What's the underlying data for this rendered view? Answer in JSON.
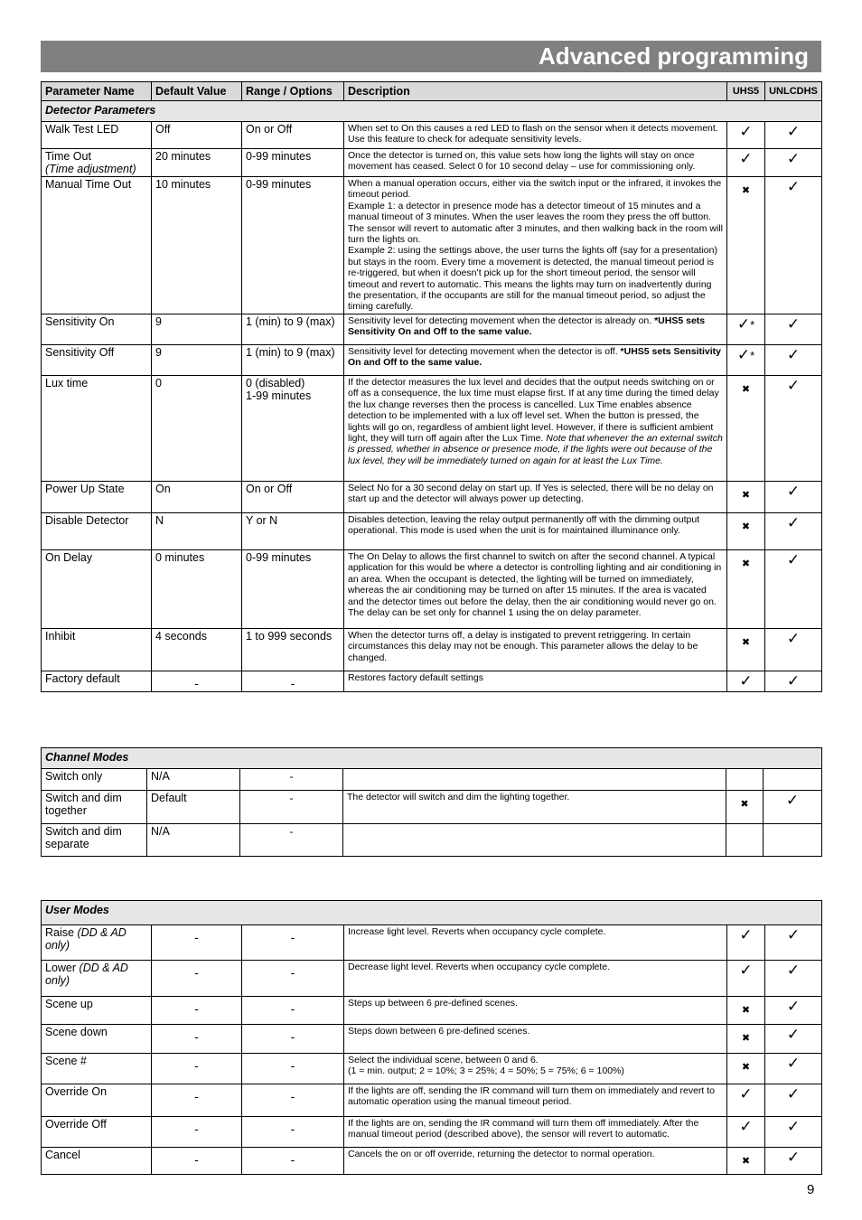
{
  "page_title": "Advanced programming",
  "page_number": "9",
  "columns": [
    "Parameter Name",
    "Default Value",
    "Range / Options",
    "Description",
    "UHS5",
    "UNLCDHS"
  ],
  "detector": {
    "section": "Detector Parameters",
    "rows": [
      {
        "name": "Walk Test LED",
        "default": "Off",
        "range": "On or Off",
        "desc": "When set to On this causes a red LED to flash on the sensor when it detects movement. Use this feature to check for adequate sensitivity levels.",
        "uhs5": "check",
        "unlcdhs": "check"
      },
      {
        "name": "Time Out",
        "name_italic": "(Time adjustment)",
        "default": "20 minutes",
        "range": "0-99 minutes",
        "desc": "Once the detector is turned on, this value sets how long the lights will stay on once movement has ceased. Select 0 for 10 second delay – use for commissioning only.",
        "uhs5": "check",
        "unlcdhs": "check"
      },
      {
        "name": "Manual Time Out",
        "default": "10 minutes",
        "range": "0-99 minutes",
        "desc": "When a manual operation occurs, either via the switch input or the infrared, it invokes the timeout period.\nExample 1: a detector in presence mode has a detector timeout of 15 minutes and a manual timeout of 3 minutes. When the user leaves the room they press the off button. The sensor will revert to automatic after 3 minutes, and then walking back in the room will turn the lights on.\nExample 2: using the settings above, the user turns the lights off (say for a presentation) but stays in the room. Every time a movement is detected, the manual timeout period is re-triggered, but when it doesn’t pick up for the short timeout period, the sensor will timeout and revert to automatic. This means the lights may turn on inadvertently during the presentation, if the occupants are still for the manual timeout period, so adjust the timing carefully.",
        "uhs5": "cross",
        "unlcdhs": "check"
      },
      {
        "name": "Sensitivity On",
        "default": "9",
        "range": "1 (min) to 9 (max)",
        "desc": "Sensitivity level for detecting movement when the detector is already on.  ",
        "desc_bold": "*UHS5 sets Sensitivity On and Off to the same value.",
        "uhs5": "check*",
        "unlcdhs": "check"
      },
      {
        "name": "Sensitivity Off",
        "default": "9",
        "range": "1 (min) to 9 (max)",
        "desc": "Sensitivity level for detecting movement when the detector is off.  ",
        "desc_bold": "*UHS5 sets Sensitivity On and Off to the same value.",
        "uhs5": "check*",
        "unlcdhs": "check"
      },
      {
        "name": "Lux time",
        "default": "0",
        "range": "0 (disabled)\n1-99 minutes",
        "desc": "If the detector measures the lux level and decides that the output needs switching on or off as a consequence, the lux time must elapse first. If at any time during the timed delay the lux change reverses then the process is cancelled. Lux Time enables absence detection to be implemented with a lux off level set. When the button is pressed, the lights will go on, regardless of ambient light level. However, if there is sufficient ambient light, they will turn off again after the Lux Time. ",
        "desc_italic": "Note that whenever the an external switch is pressed, whether in absence or presence mode, if the lights were out because of the lux level, they will be immediately turned on again for at least the Lux Time.",
        "uhs5": "cross",
        "unlcdhs": "check"
      },
      {
        "name": "Power Up State",
        "default": "On",
        "range": "On or Off",
        "desc": "Select No for a 30 second delay on start up. If Yes is selected,   there will be no delay on start up and the detector will always power up detecting.",
        "uhs5": "cross",
        "unlcdhs": "check"
      },
      {
        "name": "Disable Detector",
        "default": "N",
        "range": "Y or N",
        "desc": "Disables detection, leaving the relay output permanently off with the dimming output operational. This mode is used when the unit is for maintained illuminance only.",
        "uhs5": "cross",
        "unlcdhs": "check"
      },
      {
        "name": "On Delay",
        "default": "0 minutes",
        "range": "0-99 minutes",
        "desc": "The On Delay to allows the first channel to switch on after the second channel. A typical application for this would be where a detector is controlling lighting and air conditioning in an area. When the occupant is detected, the lighting will be turned on immediately, whereas the air conditioning may be turned on after 15 minutes. If the area is vacated and the detector times out before the delay, then the air conditioning would never go on. The delay can be set only for channel 1 using the on delay parameter.",
        "uhs5": "cross",
        "unlcdhs": "check"
      },
      {
        "name": "Inhibit",
        "default": "4 seconds",
        "range": "1 to 999 seconds",
        "desc": "When the detector turns off, a delay is instigated to prevent retriggering. In certain circumstances this delay may not be enough. This parameter allows the delay to be changed.",
        "uhs5": "cross",
        "unlcdhs": "check"
      },
      {
        "name": "Factory default",
        "default": "-",
        "range": "-",
        "desc": "Restores factory default settings",
        "uhs5": "check",
        "unlcdhs": "check"
      }
    ]
  },
  "channel": {
    "section": "Channel Modes",
    "rows": [
      {
        "name": "Switch only",
        "default": "N/A",
        "range": "-",
        "desc": "",
        "uhs5": "",
        "unlcdhs": ""
      },
      {
        "name": "Switch and dim together",
        "default": "Default",
        "range": "-",
        "desc": "The detector will switch and dim the lighting together.",
        "uhs5": "cross",
        "unlcdhs": "check"
      },
      {
        "name": "Switch and dim separate",
        "default": "N/A",
        "range": "-",
        "desc": "",
        "uhs5": "",
        "unlcdhs": ""
      }
    ]
  },
  "user": {
    "section": "User Modes",
    "rows": [
      {
        "name": "Raise ",
        "name_italic": "(DD & AD only)",
        "default": "-",
        "range": "-",
        "desc": "Increase light level. Reverts when occupancy cycle complete.",
        "uhs5": "check",
        "unlcdhs": "check"
      },
      {
        "name": "Lower ",
        "name_italic": "(DD & AD only)",
        "default": "-",
        "range": "-",
        "desc": "Decrease light level. Reverts when occupancy cycle complete.",
        "uhs5": "check",
        "unlcdhs": "check"
      },
      {
        "name": "Scene up",
        "default": "-",
        "range": "-",
        "desc": "Steps up between 6 pre-defined scenes.",
        "uhs5": "cross",
        "unlcdhs": "check"
      },
      {
        "name": "Scene down",
        "default": "-",
        "range": "-",
        "desc": "Steps down between 6 pre-defined scenes.",
        "uhs5": "cross",
        "unlcdhs": "check"
      },
      {
        "name": "Scene #",
        "default": "-",
        "range": "-",
        "desc": "Select the individual scene, between 0 and 6.\n(1 = min. output; 2 = 10%;  3 = 25%; 4 = 50%; 5 = 75%; 6 = 100%)",
        "uhs5": "cross",
        "unlcdhs": "check"
      },
      {
        "name": "Override On",
        "default": "-",
        "range": "-",
        "desc": "If the lights are off, sending the IR command will turn them on immediately and revert to automatic operation using the manual timeout period.",
        "uhs5": "check",
        "unlcdhs": "check"
      },
      {
        "name": "Override Off",
        "default": "-",
        "range": "-",
        "desc": "If the lights are on, sending the IR command will turn them off immediately. After the manual timeout period (described above), the sensor will revert to automatic.",
        "uhs5": "check",
        "unlcdhs": "check"
      },
      {
        "name": "Cancel",
        "default": "-",
        "range": "-",
        "desc": "Cancels the on or off override, returning the detector to normal operation.",
        "uhs5": "cross",
        "unlcdhs": "check"
      }
    ]
  }
}
